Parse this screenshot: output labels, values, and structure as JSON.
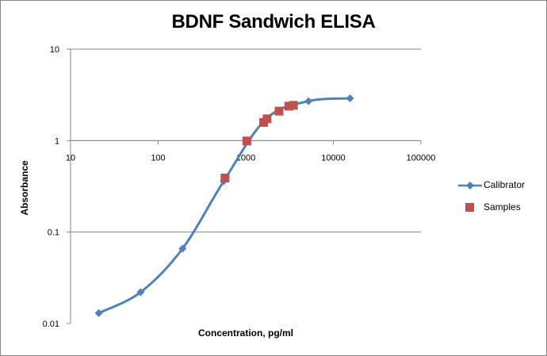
{
  "chart_data": {
    "type": "scatter",
    "title": "BDNF Sandwich ELISA",
    "xlabel": "Concentration, pg/ml",
    "ylabel": "Absorbance",
    "xscale": "log",
    "yscale": "log",
    "xlim": [
      10,
      100000
    ],
    "ylim": [
      0.01,
      10
    ],
    "x_ticks": [
      "10",
      "100",
      "1000",
      "10000",
      "100000"
    ],
    "y_ticks": [
      "0.01",
      "0.1",
      "1",
      "10"
    ],
    "grid": "horizontal major gridlines",
    "legend_position": "right",
    "series": [
      {
        "name": "Calibrator",
        "style": "line-with-diamond-markers, smoothed",
        "color": "#4F81BD",
        "points": [
          {
            "x": 21,
            "y": 0.013
          },
          {
            "x": 63,
            "y": 0.022
          },
          {
            "x": 190,
            "y": 0.066
          },
          {
            "x": 560,
            "y": 0.36
          },
          {
            "x": 1700,
            "y": 1.72
          },
          {
            "x": 5200,
            "y": 2.7
          },
          {
            "x": 15500,
            "y": 2.9
          }
        ]
      },
      {
        "name": "Samples",
        "style": "square-markers",
        "color": "#C0504D",
        "points": [
          {
            "x": 580,
            "y": 0.39
          },
          {
            "x": 1030,
            "y": 0.99
          },
          {
            "x": 1600,
            "y": 1.58
          },
          {
            "x": 1750,
            "y": 1.73
          },
          {
            "x": 2400,
            "y": 2.1
          },
          {
            "x": 3100,
            "y": 2.38
          },
          {
            "x": 3500,
            "y": 2.43
          }
        ]
      }
    ]
  }
}
